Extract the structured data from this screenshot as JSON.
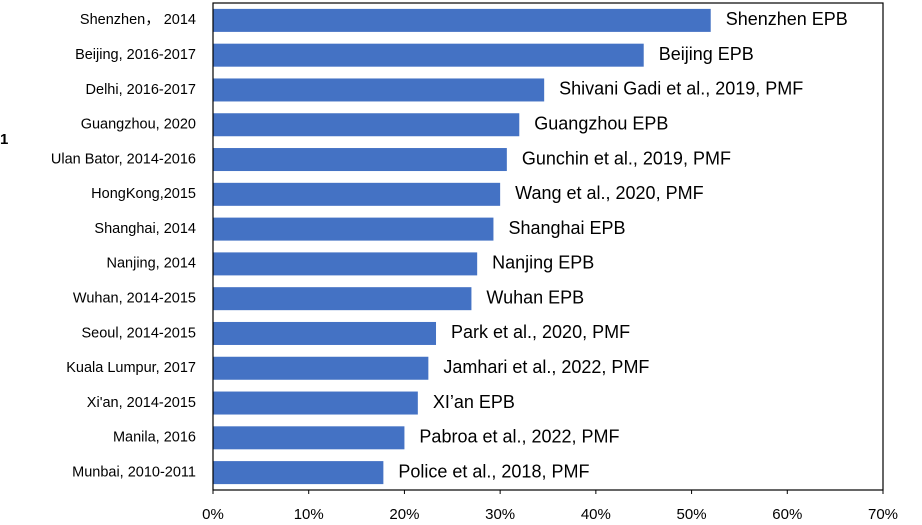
{
  "panel_label": "1",
  "chart_data": {
    "type": "bar",
    "orientation": "horizontal",
    "categories": [
      "Shenzhen， 2014",
      "Beijing, 2016-2017",
      "Delhi, 2016-2017",
      "Guangzhou, 2020",
      "Ulan Bator, 2014-2016",
      "HongKong,2015",
      "Shanghai, 2014",
      "Nanjing, 2014",
      "Wuhan, 2014-2015",
      "Seoul, 2014-2015",
      "Kuala Lumpur, 2017",
      "Xi'an, 2014-2015",
      "Manila, 2016",
      "Munbai, 2010-2011"
    ],
    "values": [
      52,
      45,
      34.6,
      32,
      30.7,
      30,
      29.3,
      27.6,
      27,
      23.3,
      22.5,
      21.4,
      20,
      17.8
    ],
    "annotations": [
      "Shenzhen EPB",
      "Beijing EPB",
      "Shivani Gadi et al., 2019, PMF",
      "Guangzhou EPB",
      "Gunchin et al., 2019,  PMF",
      "Wang et al., 2020, PMF",
      "Shanghai EPB",
      "Nanjing EPB",
      "Wuhan EPB",
      "Park et al., 2020,  PMF",
      "Jamhari et al., 2022, PMF",
      "XI’an EPB",
      "Pabroa et al., 2022, PMF",
      "Police et al., 2018, PMF"
    ],
    "color": "#4472c4",
    "xlim": [
      0,
      70
    ],
    "xticks": [
      {
        "value": 0,
        "label": "0%"
      },
      {
        "value": 10,
        "label": "10%"
      },
      {
        "value": 20,
        "label": "20%"
      },
      {
        "value": 30,
        "label": "30%"
      },
      {
        "value": 40,
        "label": "40%"
      },
      {
        "value": 50,
        "label": "50%"
      },
      {
        "value": 60,
        "label": "60%"
      },
      {
        "value": 70,
        "label": "70%"
      }
    ],
    "grid": false
  }
}
